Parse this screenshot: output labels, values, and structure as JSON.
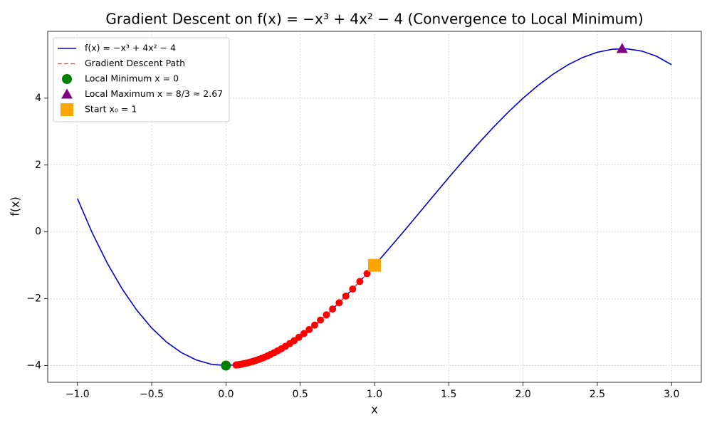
{
  "chart_data": {
    "type": "line",
    "title": "Gradient Descent on f(x) = −x³ + 4x² − 4 (Convergence to Local Minimum)",
    "xlabel": "x",
    "ylabel": "f(x)",
    "xlim": [
      -1.2,
      3.2
    ],
    "ylim": [
      -4.5,
      6.0
    ],
    "xticks": [
      {
        "value": -1,
        "label": "−1.0"
      },
      {
        "value": -0.5,
        "label": "−0.5"
      },
      {
        "value": 0,
        "label": "0.0"
      },
      0.5,
      {
        "value": 1,
        "label": "1.0"
      },
      1.5,
      {
        "value": 2,
        "label": "2.0"
      },
      2.5,
      {
        "value": 3,
        "label": "3.0"
      }
    ],
    "yticks": [
      {
        "value": -4,
        "label": "−4"
      },
      {
        "value": -2,
        "label": "−2"
      },
      0,
      2,
      4
    ],
    "grid": true,
    "legend": "upper left",
    "series": [
      {
        "name": "f(x) = −x³ + 4x² − 4",
        "color": "#0000cc",
        "kind": "line",
        "x": [
          -1,
          -0.9,
          -0.8,
          -0.7,
          -0.6,
          -0.5,
          -0.4,
          -0.3,
          -0.2,
          -0.1,
          0,
          0.1,
          0.2,
          0.3,
          0.4,
          0.5,
          0.6,
          0.7,
          0.8,
          0.9,
          1,
          1.1,
          1.2,
          1.3,
          1.4,
          1.5,
          1.6,
          1.7,
          1.8,
          1.9,
          2,
          2.1,
          2.2,
          2.3,
          2.4,
          2.5,
          2.6,
          2.7,
          2.8,
          2.9,
          3
        ],
        "values": [
          1,
          -0.031,
          -0.928,
          -1.697,
          -2.344,
          -2.875,
          -3.296,
          -3.613,
          -3.832,
          -3.959,
          -4,
          -3.961,
          -3.848,
          -3.667,
          -3.424,
          -3.125,
          -2.776,
          -2.383,
          -1.952,
          -1.489,
          -1,
          -0.491,
          0.032,
          0.563,
          1.096,
          1.625,
          2.144,
          2.647,
          3.128,
          3.581,
          4,
          4.379,
          4.712,
          4.993,
          5.216,
          5.375,
          5.464,
          5.477,
          5.408,
          5.251,
          5
        ]
      },
      {
        "name": "Gradient Descent Path",
        "color": "#f05a4a",
        "kind": "dashed",
        "marker_color": "#ff0000",
        "x": [
          1,
          0.95,
          0.901,
          0.853,
          0.807,
          0.762,
          0.718,
          0.676,
          0.636,
          0.597,
          0.56,
          0.525,
          0.491,
          0.459,
          0.429,
          0.4,
          0.373,
          0.347,
          0.323,
          0.3,
          0.279,
          0.259,
          0.24,
          0.223,
          0.206,
          0.191,
          0.177,
          0.164,
          0.151,
          0.14,
          0.129,
          0.12,
          0.11,
          0.102,
          0.094,
          0.087,
          0.08,
          0.074,
          0.068
        ],
        "values": [
          -1,
          -1.247,
          -1.484,
          -1.711,
          -1.921,
          -2.12,
          -2.308,
          -2.481,
          -2.639,
          -2.787,
          -2.922,
          -3.042,
          -3.154,
          -3.254,
          -3.343,
          -3.424,
          -3.495,
          -3.56,
          -3.617,
          -3.667,
          -3.711,
          -3.749,
          -3.784,
          -3.812,
          -3.839,
          -3.861,
          -3.881,
          -3.896,
          -3.912,
          -3.925,
          -3.935,
          -3.944,
          -3.953,
          -3.959,
          -3.966,
          -3.971,
          -3.975,
          -3.978,
          -3.982
        ]
      },
      {
        "name": "Local Minimum x = 0",
        "color": "#008000",
        "kind": "circle",
        "x": [
          0
        ],
        "values": [
          -4
        ]
      },
      {
        "name": "Local Maximum x = 8/3 ≈ 2.67",
        "color": "#800080",
        "kind": "triangle",
        "x": [
          2.667
        ],
        "values": [
          5.481
        ]
      },
      {
        "name": "Start x₀ = 1",
        "color": "#ffa500",
        "kind": "square",
        "x": [
          1
        ],
        "values": [
          -1
        ]
      }
    ]
  }
}
